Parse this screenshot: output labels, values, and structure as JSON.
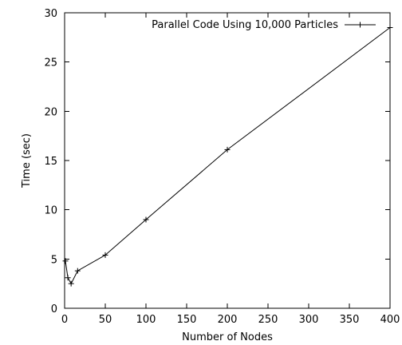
{
  "chart_data": {
    "type": "line",
    "title": "",
    "xlabel": "Number of Nodes",
    "ylabel": "Time (sec)",
    "xlim": [
      0,
      400
    ],
    "ylim": [
      0,
      30
    ],
    "xticks": [
      0,
      50,
      100,
      150,
      200,
      250,
      300,
      350,
      400
    ],
    "yticks": [
      0,
      5,
      10,
      15,
      20,
      25,
      30
    ],
    "grid": false,
    "legend_position": "top-right",
    "series": [
      {
        "name": "Parallel Code Using 10,000 Particles",
        "color": "#000000",
        "marker": "plus",
        "x": [
          1,
          4,
          8,
          16,
          50,
          100,
          200,
          400
        ],
        "y": [
          4.8,
          3.1,
          2.5,
          3.8,
          5.4,
          9.0,
          16.1,
          28.5
        ]
      }
    ]
  }
}
